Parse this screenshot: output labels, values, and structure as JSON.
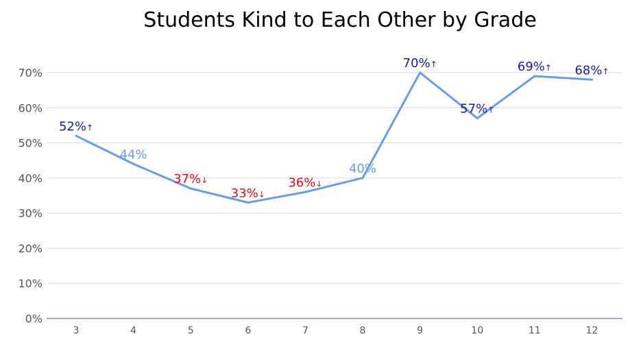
{
  "chart_data": {
    "type": "line",
    "title": "Students Kind to Each Other by Grade",
    "xlabel": "",
    "ylabel": "",
    "categories": [
      "3",
      "4",
      "5",
      "6",
      "7",
      "8",
      "9",
      "10",
      "11",
      "12"
    ],
    "series": [
      {
        "values": [
          52,
          44,
          37,
          33,
          36,
          40,
          70,
          57,
          69,
          68
        ],
        "color": "#6a9be8"
      }
    ],
    "data_labels": [
      {
        "text": "52%",
        "arrow": "↑",
        "trend": "up"
      },
      {
        "text": "44%",
        "arrow": "",
        "trend": "neutral"
      },
      {
        "text": "37%",
        "arrow": "↓",
        "trend": "down"
      },
      {
        "text": "33%",
        "arrow": "↓",
        "trend": "down"
      },
      {
        "text": "36%",
        "arrow": "↓",
        "trend": "down"
      },
      {
        "text": "40%",
        "arrow": "",
        "trend": "neutral"
      },
      {
        "text": "70%",
        "arrow": "↑",
        "trend": "up"
      },
      {
        "text": "57%",
        "arrow": "↑",
        "trend": "up"
      },
      {
        "text": "69%",
        "arrow": "↑",
        "trend": "up"
      },
      {
        "text": "68%",
        "arrow": "↑",
        "trend": "up"
      }
    ],
    "y_ticks": [
      "0%",
      "10%",
      "20%",
      "30%",
      "40%",
      "50%",
      "60%",
      "70%"
    ],
    "y_tick_values": [
      0,
      10,
      20,
      30,
      40,
      50,
      60,
      70
    ],
    "ylim": [
      0,
      70
    ],
    "grid": true,
    "legend": "none",
    "colors": {
      "line": "#6a9be8",
      "up": "#1a1aa6",
      "down": "#e0101c",
      "neutral": "#6a9be8",
      "grid": "#d9d9d9",
      "axis": "#8c8cb8"
    }
  }
}
